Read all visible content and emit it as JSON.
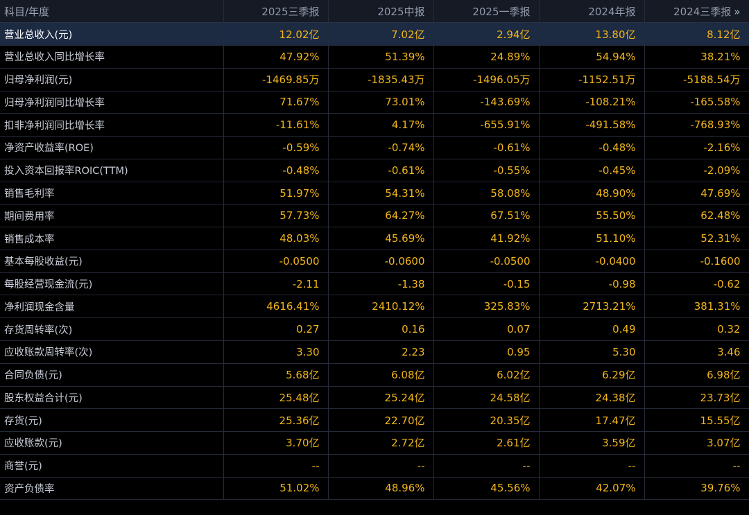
{
  "table": {
    "corner_label": "科目/年度",
    "more_icon": "»",
    "columns": [
      "2025三季报",
      "2025中报",
      "2025一季报",
      "2024年报",
      "2024三季报"
    ],
    "rows": [
      {
        "label": "营业总收入(元)",
        "values": [
          "12.02亿",
          "7.02亿",
          "2.94亿",
          "13.80亿",
          "8.12亿"
        ],
        "highlight": true
      },
      {
        "label": "营业总收入同比增长率",
        "values": [
          "47.92%",
          "51.39%",
          "24.89%",
          "54.94%",
          "38.21%"
        ]
      },
      {
        "label": "归母净利润(元)",
        "values": [
          "-1469.85万",
          "-1835.43万",
          "-1496.05万",
          "-1152.51万",
          "-5188.54万"
        ]
      },
      {
        "label": "归母净利润同比增长率",
        "values": [
          "71.67%",
          "73.01%",
          "-143.69%",
          "-108.21%",
          "-165.58%"
        ]
      },
      {
        "label": "扣非净利润同比增长率",
        "values": [
          "-11.61%",
          "4.17%",
          "-655.91%",
          "-491.58%",
          "-768.93%"
        ]
      },
      {
        "label": "净资产收益率(ROE)",
        "values": [
          "-0.59%",
          "-0.74%",
          "-0.61%",
          "-0.48%",
          "-2.16%"
        ]
      },
      {
        "label": "投入资本回报率ROIC(TTM)",
        "values": [
          "-0.48%",
          "-0.61%",
          "-0.55%",
          "-0.45%",
          "-2.09%"
        ]
      },
      {
        "label": "销售毛利率",
        "values": [
          "51.97%",
          "54.31%",
          "58.08%",
          "48.90%",
          "47.69%"
        ]
      },
      {
        "label": "期间费用率",
        "values": [
          "57.73%",
          "64.27%",
          "67.51%",
          "55.50%",
          "62.48%"
        ]
      },
      {
        "label": "销售成本率",
        "values": [
          "48.03%",
          "45.69%",
          "41.92%",
          "51.10%",
          "52.31%"
        ]
      },
      {
        "label": "基本每股收益(元)",
        "values": [
          "-0.0500",
          "-0.0600",
          "-0.0500",
          "-0.0400",
          "-0.1600"
        ]
      },
      {
        "label": "每股经营现金流(元)",
        "values": [
          "-2.11",
          "-1.38",
          "-0.15",
          "-0.98",
          "-0.62"
        ]
      },
      {
        "label": "净利润现金含量",
        "values": [
          "4616.41%",
          "2410.12%",
          "325.83%",
          "2713.21%",
          "381.31%"
        ]
      },
      {
        "label": "存货周转率(次)",
        "values": [
          "0.27",
          "0.16",
          "0.07",
          "0.49",
          "0.32"
        ]
      },
      {
        "label": "应收账款周转率(次)",
        "values": [
          "3.30",
          "2.23",
          "0.95",
          "5.30",
          "3.46"
        ]
      },
      {
        "label": "合同负债(元)",
        "values": [
          "5.68亿",
          "6.08亿",
          "6.02亿",
          "6.29亿",
          "6.98亿"
        ]
      },
      {
        "label": "股东权益合计(元)",
        "values": [
          "25.48亿",
          "25.24亿",
          "24.58亿",
          "24.38亿",
          "23.73亿"
        ]
      },
      {
        "label": "存货(元)",
        "values": [
          "25.36亿",
          "22.70亿",
          "20.35亿",
          "17.47亿",
          "15.55亿"
        ]
      },
      {
        "label": "应收账款(元)",
        "values": [
          "3.70亿",
          "2.72亿",
          "2.61亿",
          "3.59亿",
          "3.07亿"
        ]
      },
      {
        "label": "商誉(元)",
        "values": [
          "--",
          "--",
          "--",
          "--",
          "--"
        ]
      },
      {
        "label": "资产负债率",
        "values": [
          "51.02%",
          "48.96%",
          "45.56%",
          "42.07%",
          "39.76%"
        ]
      }
    ]
  }
}
